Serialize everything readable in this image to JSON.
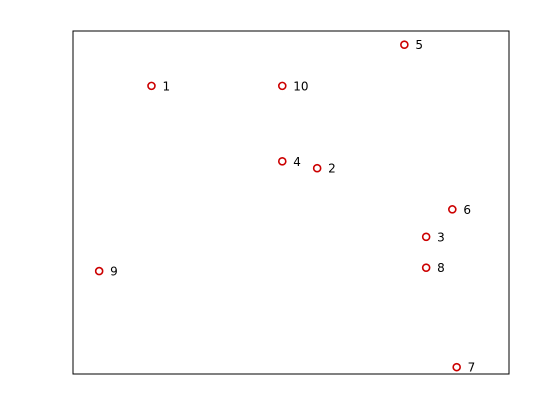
{
  "chart_data": {
    "type": "scatter",
    "title": "",
    "xlabel": "",
    "ylabel": "",
    "xlim": [
      0,
      10
    ],
    "ylim": [
      0,
      10
    ],
    "grid": false,
    "axis_ticks": false,
    "marker": "circle-open",
    "marker_color": "#cc0000",
    "points": [
      {
        "label": "1",
        "x": 1.8,
        "y": 8.4
      },
      {
        "label": "2",
        "x": 5.6,
        "y": 6.0
      },
      {
        "label": "3",
        "x": 8.1,
        "y": 4.0
      },
      {
        "label": "4",
        "x": 4.8,
        "y": 6.2
      },
      {
        "label": "5",
        "x": 7.6,
        "y": 9.6
      },
      {
        "label": "6",
        "x": 8.7,
        "y": 4.8
      },
      {
        "label": "7",
        "x": 8.8,
        "y": 0.2
      },
      {
        "label": "8",
        "x": 8.1,
        "y": 3.1
      },
      {
        "label": "9",
        "x": 0.6,
        "y": 3.0
      },
      {
        "label": "10",
        "x": 4.8,
        "y": 8.4
      }
    ]
  }
}
